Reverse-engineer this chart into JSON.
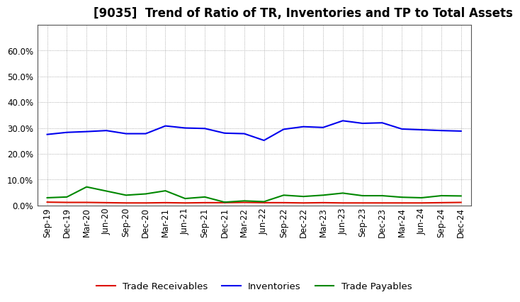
{
  "title": "[9035]  Trend of Ratio of TR, Inventories and TP to Total Assets",
  "x_labels": [
    "Sep-19",
    "Dec-19",
    "Mar-20",
    "Jun-20",
    "Sep-20",
    "Dec-20",
    "Mar-21",
    "Jun-21",
    "Sep-21",
    "Dec-21",
    "Mar-22",
    "Jun-22",
    "Sep-22",
    "Dec-22",
    "Mar-23",
    "Jun-23",
    "Sep-23",
    "Dec-23",
    "Mar-24",
    "Jun-24",
    "Sep-24",
    "Dec-24"
  ],
  "trade_receivables": [
    0.013,
    0.012,
    0.012,
    0.011,
    0.01,
    0.01,
    0.011,
    0.01,
    0.011,
    0.011,
    0.012,
    0.011,
    0.011,
    0.01,
    0.011,
    0.01,
    0.01,
    0.01,
    0.01,
    0.01,
    0.011,
    0.012
  ],
  "inventories": [
    0.275,
    0.283,
    0.286,
    0.29,
    0.278,
    0.278,
    0.308,
    0.3,
    0.298,
    0.28,
    0.278,
    0.252,
    0.295,
    0.305,
    0.302,
    0.328,
    0.318,
    0.32,
    0.296,
    0.293,
    0.29,
    0.288
  ],
  "trade_payables": [
    0.03,
    0.033,
    0.072,
    0.056,
    0.04,
    0.045,
    0.057,
    0.027,
    0.033,
    0.013,
    0.018,
    0.015,
    0.04,
    0.035,
    0.04,
    0.048,
    0.038,
    0.038,
    0.032,
    0.03,
    0.038,
    0.037
  ],
  "tr_color": "#dd1100",
  "inv_color": "#0000ee",
  "tp_color": "#008800",
  "ylim": [
    0.0,
    0.7
  ],
  "yticks": [
    0.0,
    0.1,
    0.2,
    0.3,
    0.4,
    0.5,
    0.6
  ],
  "bg_color": "#ffffff",
  "plot_bg_color": "#ffffff",
  "grid_color": "#999999",
  "legend_labels": [
    "Trade Receivables",
    "Inventories",
    "Trade Payables"
  ],
  "title_fontsize": 12,
  "tick_fontsize": 8.5
}
